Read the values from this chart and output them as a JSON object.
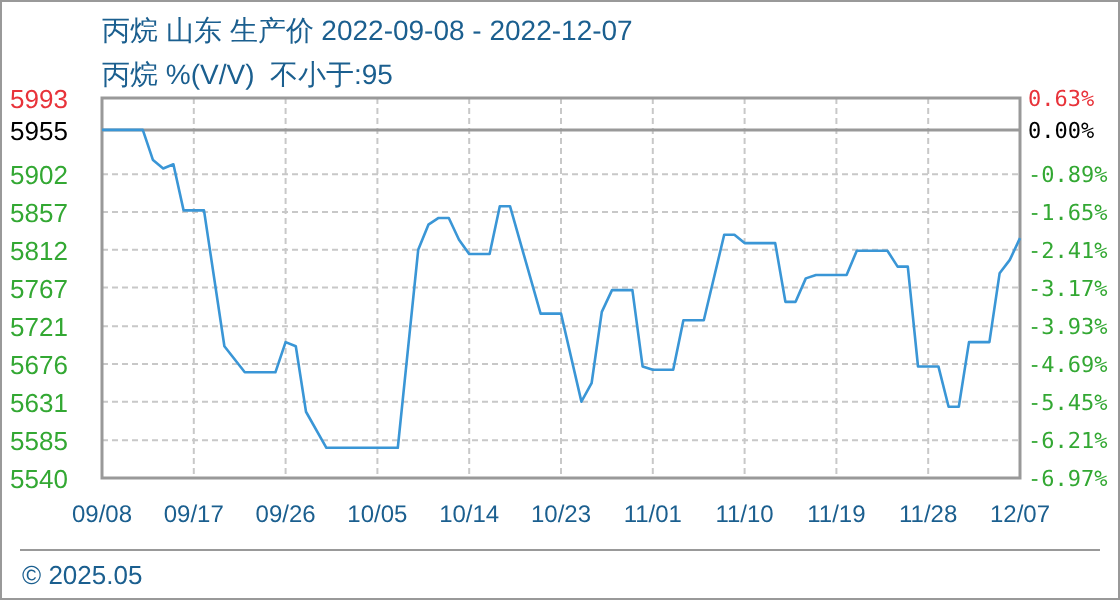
{
  "chart_data": {
    "type": "line",
    "title": "丙烷 山东 生产价 2022-09-08 - 2022-12-07",
    "subtitle": "丙烷 %(V/V)  不小于:95",
    "annotations": [
      "© 2025.05"
    ],
    "x": [
      "2022-09-08",
      "2022-09-12",
      "2022-09-13",
      "2022-09-14",
      "2022-09-15",
      "2022-09-16",
      "2022-09-18",
      "2022-09-20",
      "2022-09-22",
      "2022-09-25",
      "2022-09-26",
      "2022-09-27",
      "2022-09-28",
      "2022-09-30",
      "2022-10-07",
      "2022-10-09",
      "2022-10-10",
      "2022-10-11",
      "2022-10-12",
      "2022-10-13",
      "2022-10-14",
      "2022-10-16",
      "2022-10-17",
      "2022-10-18",
      "2022-10-21",
      "2022-10-23",
      "2022-10-25",
      "2022-10-26",
      "2022-10-27",
      "2022-10-28",
      "2022-10-30",
      "2022-10-31",
      "2022-11-01",
      "2022-11-03",
      "2022-11-04",
      "2022-11-06",
      "2022-11-08",
      "2022-11-09",
      "2022-11-10",
      "2022-11-13",
      "2022-11-14",
      "2022-11-15",
      "2022-11-16",
      "2022-11-17",
      "2022-11-20",
      "2022-11-21",
      "2022-11-24",
      "2022-11-25",
      "2022-11-26",
      "2022-11-27",
      "2022-11-29",
      "2022-11-30",
      "2022-12-01",
      "2022-12-02",
      "2022-12-04",
      "2022-12-05",
      "2022-12-06",
      "2022-12-07"
    ],
    "series": [
      {
        "color": "#3a96d6",
        "values": [
          5955,
          5955,
          5919,
          5909,
          5914,
          5859,
          5859,
          5697,
          5666,
          5666,
          5702,
          5697,
          5619,
          5576,
          5576,
          5812,
          5842,
          5850,
          5850,
          5824,
          5807,
          5807,
          5864,
          5864,
          5736,
          5736,
          5631,
          5653,
          5738,
          5764,
          5764,
          5673,
          5669,
          5669,
          5728,
          5728,
          5830,
          5830,
          5820,
          5820,
          5750,
          5750,
          5778,
          5782,
          5782,
          5811,
          5811,
          5792,
          5792,
          5673,
          5673,
          5625,
          5625,
          5702,
          5702,
          5784,
          5800,
          5826
        ]
      }
    ],
    "xlim": [
      "2022-09-08",
      "2022-12-07"
    ],
    "xticks": [
      {
        "value": "2022-09-08",
        "label": "09/08"
      },
      {
        "value": "2022-09-17",
        "label": "09/17"
      },
      {
        "value": "2022-09-26",
        "label": "09/26"
      },
      {
        "value": "2022-10-05",
        "label": "10/05"
      },
      {
        "value": "2022-10-14",
        "label": "10/14"
      },
      {
        "value": "2022-10-23",
        "label": "10/23"
      },
      {
        "value": "2022-11-01",
        "label": "11/01"
      },
      {
        "value": "2022-11-10",
        "label": "11/10"
      },
      {
        "value": "2022-11-19",
        "label": "11/19"
      },
      {
        "value": "2022-11-28",
        "label": "11/28"
      },
      {
        "value": "2022-12-07",
        "label": "12/07"
      }
    ],
    "ylim": [
      5540,
      5993
    ],
    "yticks": [
      5540,
      5585,
      5631,
      5676,
      5721,
      5767,
      5812,
      5857,
      5902,
      5955,
      5993
    ],
    "y2lim": [
      -6.97,
      0.63
    ],
    "y2ticks": [
      {
        "value": -6.97,
        "label": "-6.97%"
      },
      {
        "value": -6.21,
        "label": "-6.21%"
      },
      {
        "value": -5.45,
        "label": "-5.45%"
      },
      {
        "value": -4.69,
        "label": "-4.69%"
      },
      {
        "value": -3.93,
        "label": "-3.93%"
      },
      {
        "value": -3.17,
        "label": "-3.17%"
      },
      {
        "value": -2.41,
        "label": "-2.41%"
      },
      {
        "value": -1.65,
        "label": "-1.65%"
      },
      {
        "value": -0.89,
        "label": "-0.89%"
      },
      {
        "value": 0,
        "label": "0.00%"
      },
      {
        "value": 0.63,
        "label": "0.63%"
      }
    ],
    "ref_lines": [
      {
        "axis": "y",
        "value": 5955,
        "color": "#999999"
      }
    ],
    "grid": true,
    "marker": "none",
    "line_style": "solid"
  }
}
